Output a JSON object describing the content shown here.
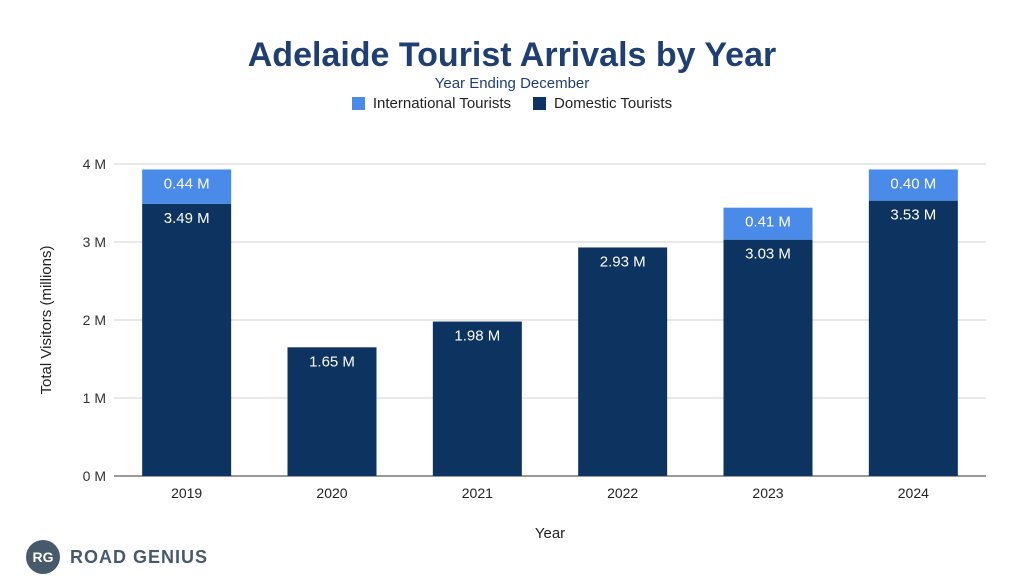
{
  "chart_data": {
    "type": "bar",
    "stacked": true,
    "title": "Adelaide Tourist Arrivals by Year",
    "subtitle": "Year Ending December",
    "xlabel": "Year",
    "ylabel": "Total Visitors (millions)",
    "categories": [
      "2019",
      "2020",
      "2021",
      "2022",
      "2023",
      "2024"
    ],
    "ylim": [
      0,
      4
    ],
    "yticks": [
      "0 M",
      "1 M",
      "2 M",
      "3 M",
      "4 M"
    ],
    "grid": true,
    "legend_position": "top",
    "series": [
      {
        "name": "Domestic Tourists",
        "color": "#0d3460",
        "values": [
          3.49,
          1.65,
          1.98,
          2.93,
          3.03,
          3.53
        ],
        "labels": [
          "3.49 M",
          "1.65 M",
          "1.98 M",
          "2.93 M",
          "3.03 M",
          "3.53 M"
        ]
      },
      {
        "name": "International Tourists",
        "color": "#4a8bea",
        "values": [
          0.44,
          0,
          0,
          0,
          0.41,
          0.4
        ],
        "labels": [
          "0.44 M",
          "",
          "",
          "",
          "0.41 M",
          "0.40 M"
        ]
      }
    ]
  },
  "legend": {
    "items": [
      {
        "label": "International Tourists",
        "color": "#4a8bea"
      },
      {
        "label": "Domestic Tourists",
        "color": "#0d3460"
      }
    ]
  },
  "logo": {
    "badge": "RG",
    "text": "ROAD GENIUS"
  }
}
